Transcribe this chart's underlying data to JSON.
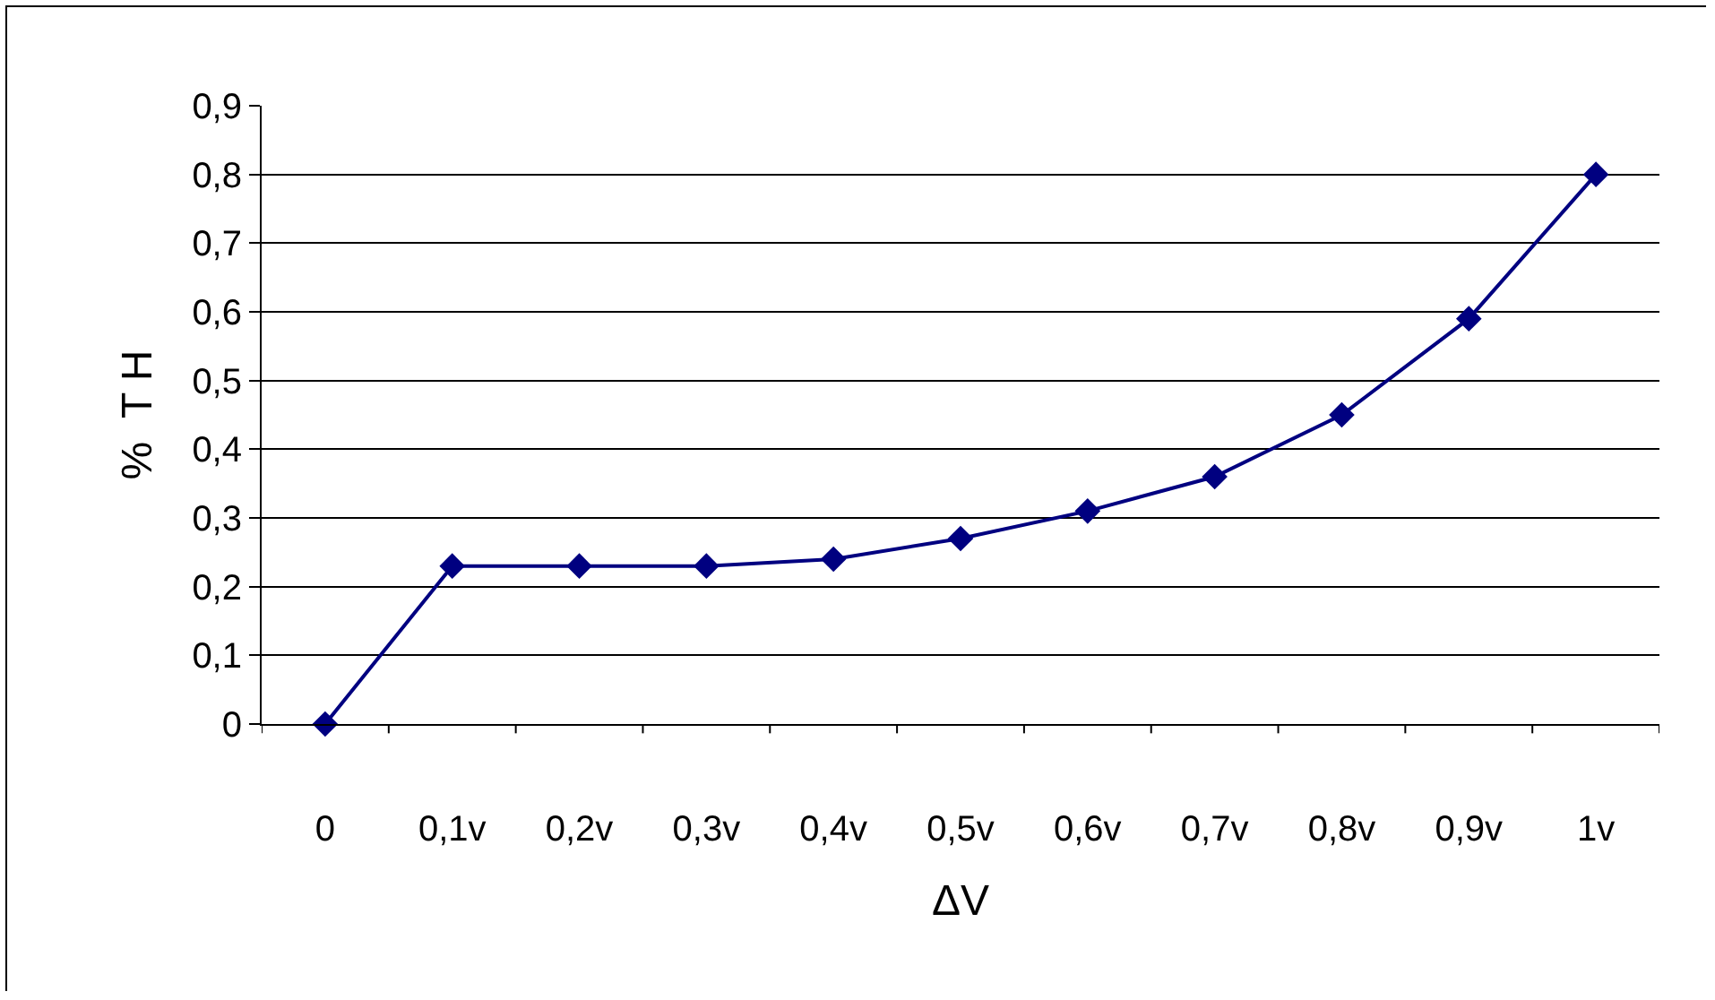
{
  "chart_data": {
    "type": "line",
    "xlabel": "ΔV",
    "ylabel": "%  T H",
    "categories": [
      "0",
      "0,1v",
      "0,2v",
      "0,3v",
      "0,4v",
      "0,5v",
      "0,6v",
      "0,7v",
      "0,8v",
      "0,9v",
      "1v"
    ],
    "series": [
      {
        "color": "#000080",
        "values": [
          0,
          0.23,
          0.23,
          0.23,
          0.24,
          0.27,
          0.31,
          0.36,
          0.45,
          0.59,
          0.8
        ]
      }
    ],
    "ylim": [
      0,
      0.9
    ],
    "yticks": [
      0,
      {
        "value": 0.1,
        "label": "0,1"
      },
      {
        "value": 0.2,
        "label": "0,2"
      },
      {
        "value": 0.3,
        "label": "0,3"
      },
      {
        "value": 0.4,
        "label": "0,4"
      },
      {
        "value": 0.5,
        "label": "0,5"
      },
      {
        "value": 0.6,
        "label": "0,6"
      },
      {
        "value": 0.7,
        "label": "0,7"
      },
      {
        "value": 0.8,
        "label": "0,8"
      },
      {
        "value": 0.9,
        "label": "0,9"
      }
    ],
    "grid": "y",
    "marker": "diamond",
    "line_style": "solid"
  }
}
